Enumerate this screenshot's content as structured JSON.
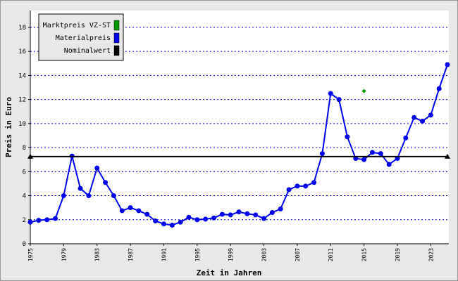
{
  "chart_data": {
    "type": "line",
    "xlabel": "Zeit in Jahren",
    "ylabel": "Preis in Euro",
    "xlim": [
      1975,
      2025
    ],
    "ylim": [
      0,
      19.4
    ],
    "xticks": [
      1975,
      1979,
      1983,
      1987,
      1991,
      1995,
      1999,
      2003,
      2007,
      2011,
      2015,
      2019,
      2023
    ],
    "yticks": [
      0,
      2,
      4,
      6,
      8,
      10,
      12,
      14,
      16,
      18
    ],
    "grid": true,
    "legend": "top-left",
    "series": [
      {
        "name": "Marktpreis VZ-ST",
        "color": "#009900",
        "marker": "diamond",
        "x": [
          2015
        ],
        "values": [
          12.7
        ]
      },
      {
        "name": "Materialpreis",
        "color": "#0000ee",
        "marker": "circle",
        "x": [
          1975,
          1976,
          1977,
          1978,
          1979,
          1980,
          1981,
          1982,
          1983,
          1984,
          1985,
          1986,
          1987,
          1988,
          1989,
          1990,
          1991,
          1992,
          1993,
          1994,
          1995,
          1996,
          1997,
          1998,
          1999,
          2000,
          2001,
          2002,
          2003,
          2004,
          2005,
          2006,
          2007,
          2008,
          2009,
          2010,
          2011,
          2012,
          2013,
          2014,
          2015,
          2016,
          2017,
          2018,
          2019,
          2020,
          2021,
          2022,
          2023,
          2024,
          2025
        ],
        "values": [
          1.8,
          1.95,
          2.0,
          2.1,
          4.0,
          7.3,
          4.6,
          4.0,
          6.3,
          5.1,
          4.0,
          2.75,
          3.0,
          2.75,
          2.45,
          1.9,
          1.65,
          1.55,
          1.8,
          2.2,
          2.0,
          2.05,
          2.15,
          2.45,
          2.4,
          2.65,
          2.5,
          2.4,
          2.1,
          2.6,
          2.9,
          4.5,
          4.8,
          4.8,
          5.1,
          7.5,
          12.5,
          12.0,
          8.9,
          7.1,
          7.0,
          7.6,
          7.5,
          6.6,
          7.1,
          8.8,
          10.5,
          10.2,
          10.7,
          12.9,
          14.9
        ]
      },
      {
        "name": "Nominalwert",
        "color": "#000000",
        "marker": "triangle",
        "x": [
          1975,
          2025
        ],
        "values": [
          7.25,
          7.25
        ]
      }
    ]
  }
}
